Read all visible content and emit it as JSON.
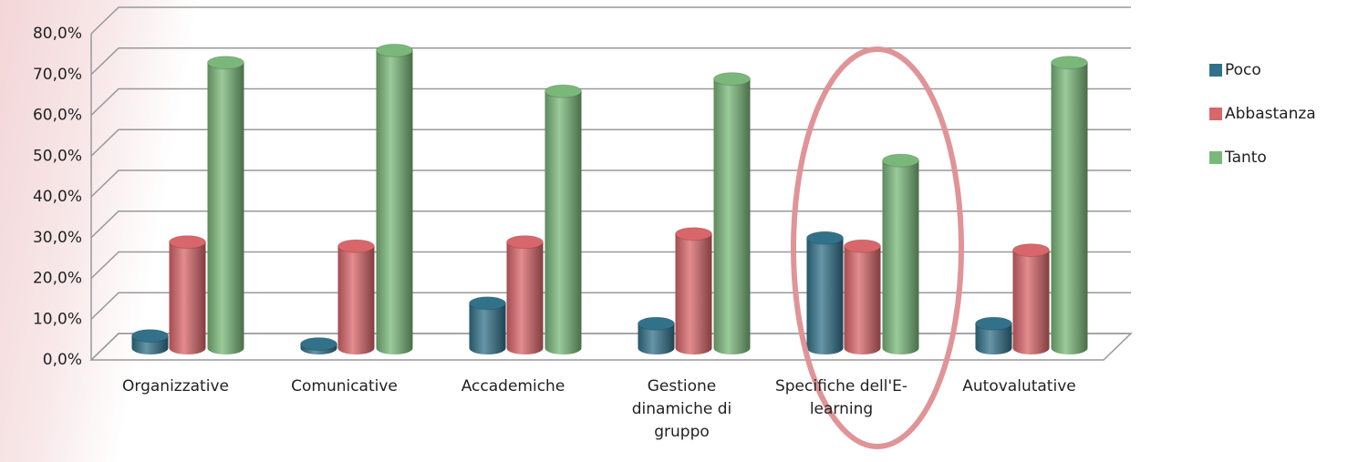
{
  "chart_data": {
    "type": "bar3d",
    "categories": [
      "Organizzative",
      "Comunicative",
      "Accademiche",
      "Gestione dinamiche di gruppo",
      "Specifiche dell'E-learning",
      "Autovalutative"
    ],
    "series": [
      {
        "name": "Poco",
        "color": "#31728a",
        "values": [
          3,
          1,
          11,
          6,
          27,
          6
        ]
      },
      {
        "name": "Abbastanza",
        "color": "#d9666a",
        "values": [
          26,
          25,
          26,
          28,
          25,
          24
        ]
      },
      {
        "name": "Tanto",
        "color": "#7ab87a",
        "values": [
          70,
          73,
          63,
          66,
          46,
          70
        ]
      }
    ],
    "ylim": [
      0,
      80
    ],
    "yticks": [
      {
        "value": 0,
        "label": "0,0%"
      },
      {
        "value": 10,
        "label": "10,0%"
      },
      {
        "value": 20,
        "label": "20,0%"
      },
      {
        "value": 30,
        "label": "30,0%"
      },
      {
        "value": 40,
        "label": "40,0%"
      },
      {
        "value": 50,
        "label": "50,0%"
      },
      {
        "value": 60,
        "label": "60,0%"
      },
      {
        "value": 70,
        "label": "70,0%"
      },
      {
        "value": 80,
        "label": "80,0%"
      }
    ],
    "grid": true,
    "legend": "right"
  }
}
